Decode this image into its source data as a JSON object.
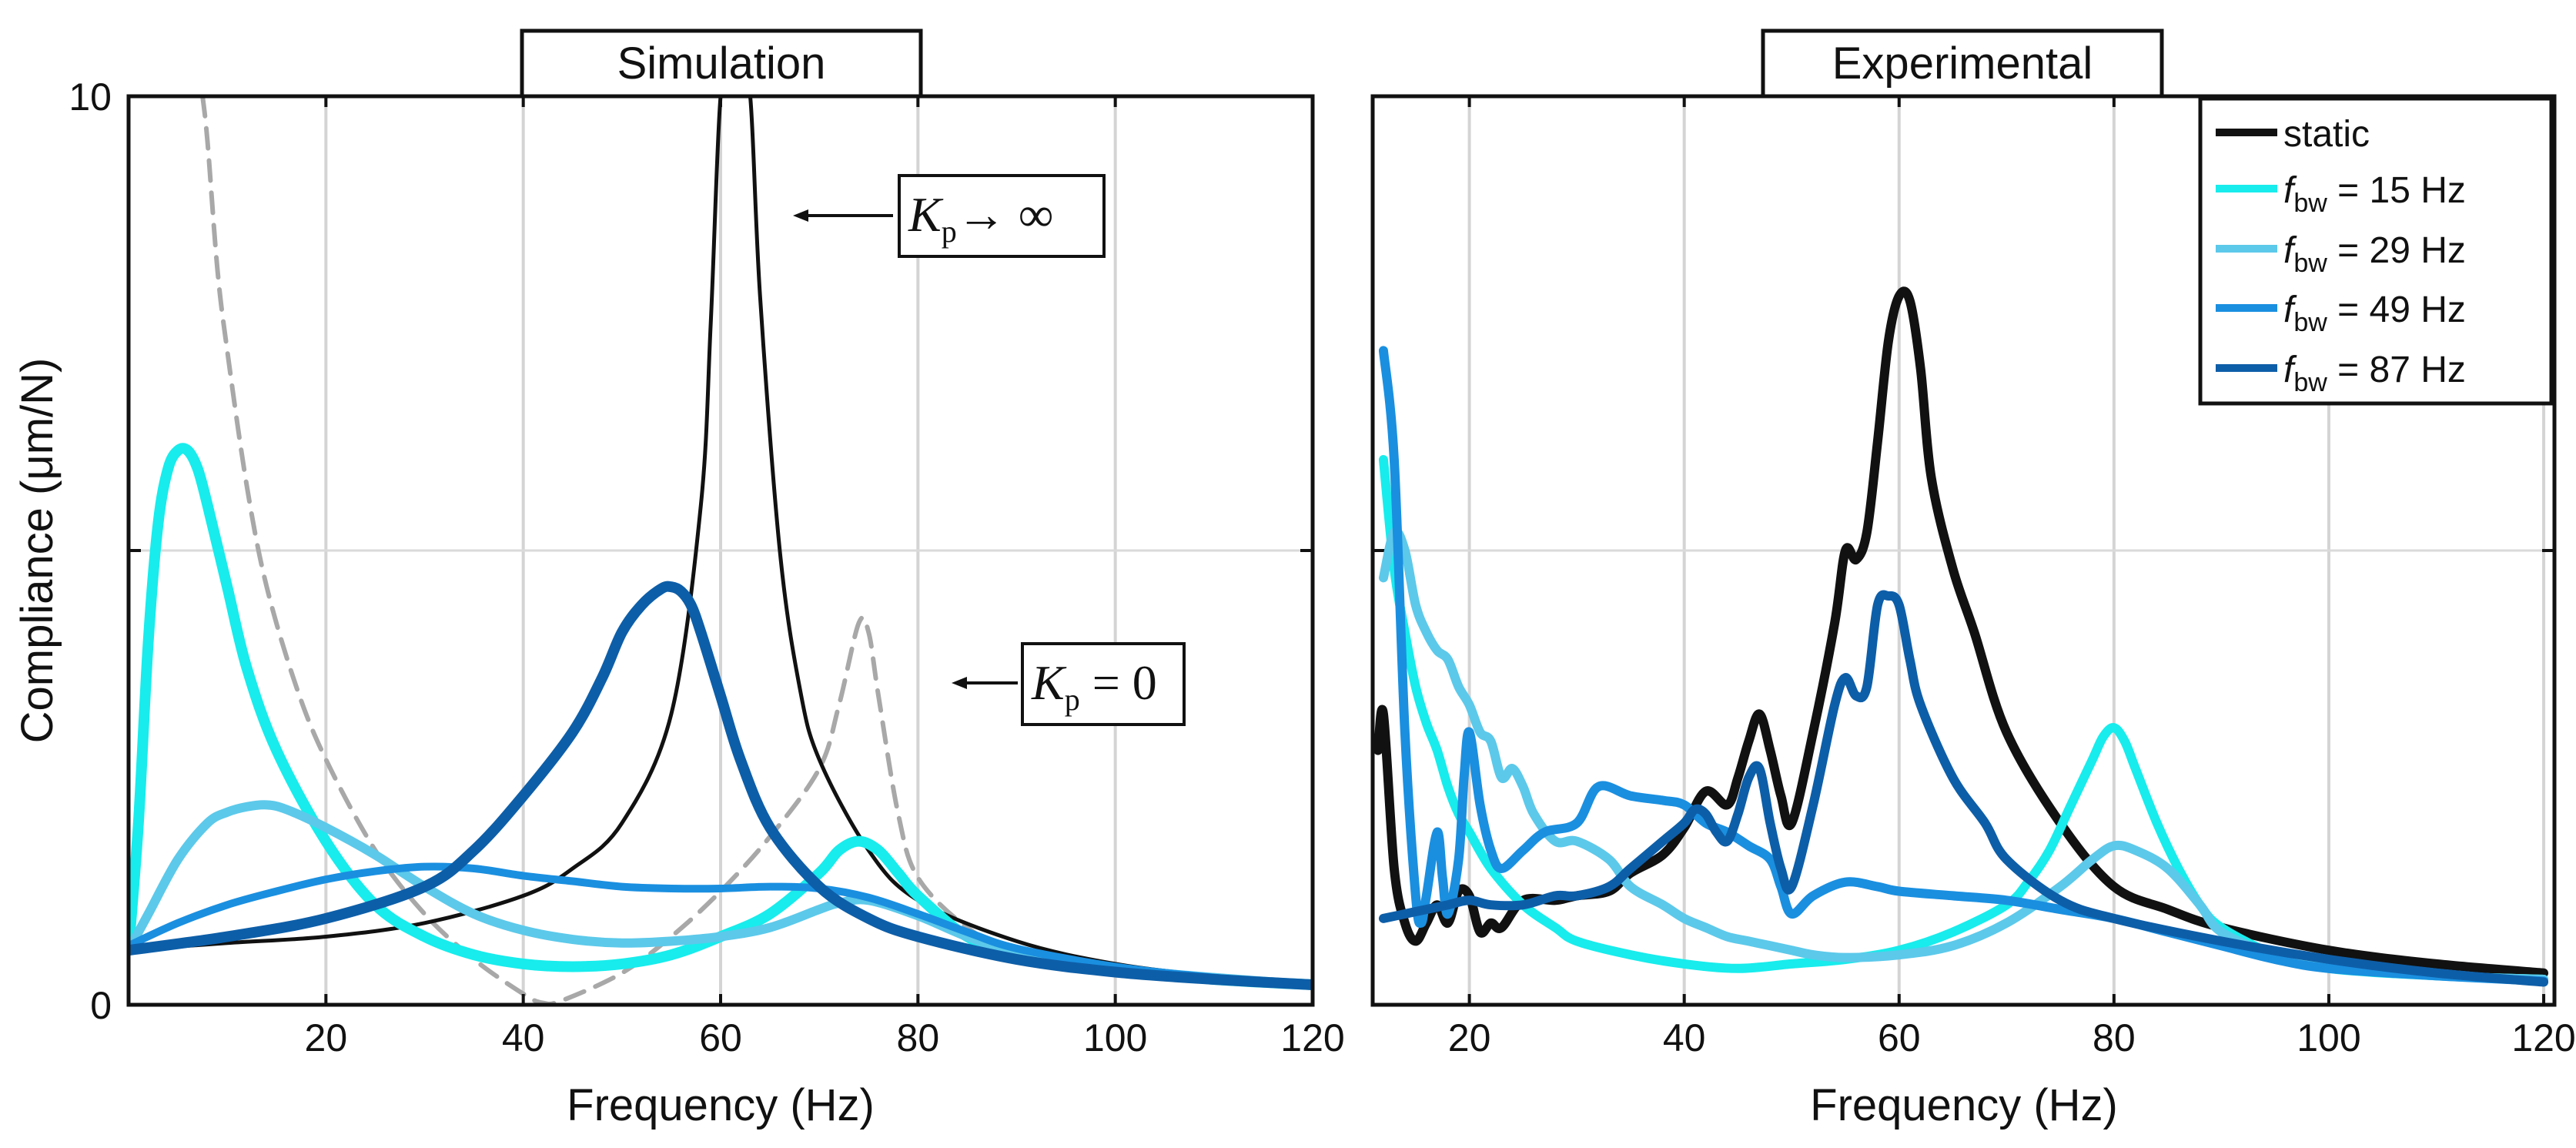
{
  "colors": {
    "static": "#111111",
    "f15": "#18ecec",
    "f29": "#5cc9ea",
    "f49": "#1a8fe0",
    "f87": "#0d5ea8",
    "kp0": "#a8a8a8"
  },
  "chart_data": [
    {
      "type": "line",
      "title": "Simulation",
      "xlabel": "Frequency (Hz)",
      "ylabel": "Compliance (μm/N)",
      "xlim": [
        0,
        120
      ],
      "ylim": [
        0,
        10
      ],
      "xticks": [
        "20",
        "40",
        "60",
        "80",
        "100",
        "120"
      ],
      "yticks": [
        "0",
        "10"
      ],
      "grid": true,
      "annotations": [
        {
          "label_main": "K",
          "label_sub": "p",
          "label_tail": "→ ∞"
        },
        {
          "label_main": "K",
          "label_sub": "p",
          "label_tail": " = 0"
        }
      ],
      "series": [
        {
          "name": "Kp = 0",
          "style": "dashed",
          "color_key": "kp0",
          "width": 6,
          "x": [
            7.5,
            8,
            9,
            10,
            12,
            14,
            17,
            20,
            25,
            30,
            35,
            40,
            42,
            44,
            50,
            55,
            60,
            65,
            70,
            72,
            74,
            75,
            76,
            78,
            80,
            85,
            90,
            100,
            110,
            120
          ],
          "y": [
            10,
            9.5,
            8.1,
            7.2,
            5.7,
            4.6,
            3.5,
            2.7,
            1.7,
            1.0,
            0.5,
            0.12,
            0.02,
            0.05,
            0.35,
            0.75,
            1.25,
            1.85,
            2.6,
            3.3,
            4.2,
            4.1,
            3.4,
            2.1,
            1.4,
            0.85,
            0.6,
            0.35,
            0.25,
            0.2
          ]
        },
        {
          "name": "Kp → ∞",
          "style": "solid",
          "color_key": "static",
          "width": 5,
          "x": [
            0,
            10,
            20,
            30,
            40,
            45,
            50,
            55,
            58,
            59,
            60,
            61,
            62,
            63,
            64,
            66,
            68,
            70,
            75,
            80,
            90,
            100,
            110,
            120
          ],
          "y": [
            0.6,
            0.68,
            0.75,
            0.9,
            1.2,
            1.5,
            2.0,
            3.2,
            5.5,
            7.5,
            10,
            10,
            10,
            10,
            7.8,
            5.0,
            3.5,
            2.7,
            1.7,
            1.15,
            0.7,
            0.45,
            0.32,
            0.25
          ]
        },
        {
          "name": "f_bw = 15 Hz",
          "style": "solid",
          "color_key": "f15",
          "width": 14,
          "x": [
            0,
            1,
            2,
            3,
            4,
            5,
            6,
            7,
            8,
            10,
            12,
            15,
            20,
            25,
            30,
            35,
            40,
            45,
            50,
            55,
            60,
            65,
            70,
            72,
            74,
            76,
            78,
            80,
            85,
            90,
            100,
            110,
            120
          ],
          "y": [
            0.6,
            2.0,
            4.0,
            5.3,
            5.9,
            6.1,
            6.1,
            5.9,
            5.5,
            4.6,
            3.7,
            2.8,
            1.8,
            1.1,
            0.75,
            0.55,
            0.45,
            0.42,
            0.45,
            0.55,
            0.75,
            1.0,
            1.45,
            1.7,
            1.8,
            1.7,
            1.45,
            1.2,
            0.75,
            0.55,
            0.38,
            0.28,
            0.22
          ]
        },
        {
          "name": "f_bw = 29 Hz",
          "style": "solid",
          "color_key": "f29",
          "width": 12,
          "x": [
            0,
            2,
            5,
            8,
            10,
            12,
            14,
            16,
            20,
            25,
            30,
            35,
            40,
            45,
            50,
            55,
            60,
            65,
            70,
            72,
            75,
            80,
            85,
            90,
            100,
            110,
            120
          ],
          "y": [
            0.6,
            1.0,
            1.6,
            2.0,
            2.12,
            2.18,
            2.2,
            2.15,
            1.95,
            1.65,
            1.3,
            1.0,
            0.82,
            0.72,
            0.68,
            0.7,
            0.75,
            0.85,
            1.05,
            1.12,
            1.15,
            0.98,
            0.75,
            0.58,
            0.4,
            0.3,
            0.22
          ]
        },
        {
          "name": "f_bw = 49 Hz",
          "style": "solid",
          "color_key": "f49",
          "width": 10,
          "x": [
            0,
            5,
            10,
            15,
            20,
            25,
            30,
            35,
            40,
            45,
            50,
            55,
            60,
            65,
            70,
            75,
            80,
            85,
            90,
            100,
            110,
            120
          ],
          "y": [
            0.65,
            0.9,
            1.1,
            1.25,
            1.38,
            1.47,
            1.52,
            1.5,
            1.42,
            1.36,
            1.3,
            1.28,
            1.28,
            1.3,
            1.28,
            1.18,
            1.0,
            0.8,
            0.62,
            0.42,
            0.3,
            0.22
          ]
        },
        {
          "name": "f_bw = 87 Hz",
          "style": "solid",
          "color_key": "f87",
          "width": 14,
          "x": [
            0,
            10,
            20,
            30,
            35,
            40,
            45,
            48,
            50,
            52,
            54,
            55,
            56,
            57,
            58,
            60,
            62,
            65,
            70,
            75,
            80,
            90,
            100,
            110,
            120
          ],
          "y": [
            0.6,
            0.75,
            0.95,
            1.3,
            1.7,
            2.3,
            3.0,
            3.6,
            4.1,
            4.4,
            4.58,
            4.6,
            4.55,
            4.4,
            4.1,
            3.4,
            2.7,
            1.95,
            1.3,
            0.95,
            0.75,
            0.5,
            0.36,
            0.28,
            0.22
          ]
        }
      ]
    },
    {
      "type": "line",
      "title": "Experimental",
      "xlabel": "Frequency (Hz)",
      "xlim": [
        11,
        121
      ],
      "ylim": [
        0,
        10
      ],
      "xticks": [
        "20",
        "40",
        "60",
        "80",
        "100",
        "120"
      ],
      "grid": true,
      "legend_position": "top-right",
      "legend": [
        {
          "label": "static",
          "color_key": "static"
        },
        {
          "label_main": "f",
          "label_sub": "bw",
          "label_tail": " = 15 Hz",
          "color_key": "f15"
        },
        {
          "label_main": "f",
          "label_sub": "bw",
          "label_tail": " = 29 Hz",
          "color_key": "f29"
        },
        {
          "label_main": "f",
          "label_sub": "bw",
          "label_tail": " = 49 Hz",
          "color_key": "f49"
        },
        {
          "label_main": "f",
          "label_sub": "bw",
          "label_tail": " = 87 Hz",
          "color_key": "f87"
        }
      ],
      "series": [
        {
          "name": "static",
          "color_key": "static",
          "width": 12,
          "x": [
            11.5,
            12,
            13,
            14,
            15,
            16,
            17,
            18,
            19,
            20,
            21,
            22,
            23,
            25,
            28,
            30,
            33,
            35,
            38,
            40,
            42,
            44,
            45,
            46,
            47,
            48,
            49,
            50,
            52,
            54,
            55,
            56,
            57,
            58,
            59,
            60,
            61,
            62,
            63,
            65,
            67,
            70,
            75,
            80,
            85,
            90,
            100,
            110,
            120
          ],
          "y": [
            2.8,
            3.2,
            1.5,
            0.9,
            0.7,
            0.9,
            1.1,
            0.9,
            1.25,
            1.2,
            0.8,
            0.9,
            0.85,
            1.15,
            1.15,
            1.2,
            1.25,
            1.45,
            1.65,
            1.95,
            2.35,
            2.2,
            2.5,
            2.9,
            3.2,
            2.8,
            2.3,
            2.0,
            3.0,
            4.2,
            5.0,
            4.9,
            5.2,
            6.2,
            7.3,
            7.8,
            7.75,
            7.0,
            5.8,
            4.8,
            4.1,
            3.0,
            2.0,
            1.3,
            1.05,
            0.85,
            0.6,
            0.45,
            0.35
          ]
        },
        {
          "name": "f_bw = 15 Hz",
          "color_key": "f15",
          "width": 12,
          "x": [
            12,
            13,
            14,
            15,
            16,
            17,
            18,
            19,
            20,
            22,
            25,
            28,
            30,
            35,
            40,
            45,
            50,
            55,
            60,
            65,
            70,
            72,
            74,
            76,
            78,
            79,
            80,
            81,
            82,
            84,
            86,
            88,
            90,
            95,
            100,
            110,
            120
          ],
          "y": [
            6,
            4.8,
            4.1,
            3.5,
            3.1,
            2.8,
            2.4,
            2.1,
            1.9,
            1.5,
            1.1,
            0.85,
            0.7,
            0.55,
            0.45,
            0.4,
            0.45,
            0.5,
            0.6,
            0.8,
            1.1,
            1.35,
            1.7,
            2.2,
            2.7,
            2.95,
            3.05,
            2.9,
            2.6,
            2.0,
            1.5,
            1.1,
            0.85,
            0.55,
            0.4,
            0.32,
            0.28
          ]
        },
        {
          "name": "f_bw = 29 Hz",
          "color_key": "f29",
          "width": 12,
          "x": [
            12,
            13,
            14,
            15,
            16,
            17,
            18,
            19,
            20,
            21,
            22,
            23,
            24,
            25,
            26,
            28,
            30,
            33,
            35,
            38,
            40,
            42,
            44,
            46,
            48,
            50,
            52,
            55,
            60,
            65,
            70,
            75,
            78,
            80,
            82,
            85,
            88,
            90,
            95,
            100,
            110,
            120
          ],
          "y": [
            4.7,
            5.2,
            5.0,
            4.4,
            4.1,
            3.9,
            3.8,
            3.5,
            3.3,
            3.0,
            2.9,
            2.5,
            2.6,
            2.4,
            2.1,
            1.8,
            1.8,
            1.6,
            1.3,
            1.1,
            0.95,
            0.85,
            0.75,
            0.7,
            0.65,
            0.6,
            0.55,
            0.52,
            0.55,
            0.65,
            0.9,
            1.3,
            1.6,
            1.75,
            1.7,
            1.5,
            1.1,
            0.8,
            0.55,
            0.42,
            0.32,
            0.28
          ]
        },
        {
          "name": "f_bw = 49 Hz",
          "color_key": "f49",
          "width": 12,
          "x": [
            12,
            13,
            14,
            15,
            15.5,
            16,
            17,
            17.5,
            18,
            19,
            19.5,
            20,
            21,
            22,
            23,
            25,
            27,
            30,
            32,
            35,
            38,
            40,
            42,
            44,
            46,
            48,
            49,
            50,
            52,
            55,
            58,
            60,
            65,
            70,
            75,
            80,
            85,
            90,
            95,
            100,
            110,
            120
          ],
          "y": [
            7.2,
            6.0,
            3.0,
            1.2,
            0.9,
            1.2,
            1.9,
            1.4,
            1.0,
            1.6,
            2.5,
            3.0,
            2.2,
            1.7,
            1.5,
            1.7,
            1.9,
            2.0,
            2.4,
            2.3,
            2.25,
            2.2,
            2.0,
            1.9,
            1.75,
            1.6,
            1.3,
            1.0,
            1.2,
            1.35,
            1.3,
            1.25,
            1.2,
            1.15,
            1.05,
            0.95,
            0.8,
            0.65,
            0.5,
            0.4,
            0.32,
            0.26
          ]
        },
        {
          "name": "f_bw = 87 Hz",
          "color_key": "f87",
          "width": 12,
          "x": [
            12,
            14,
            16,
            18,
            20,
            22,
            25,
            28,
            30,
            33,
            35,
            38,
            40,
            41,
            42,
            43,
            44,
            45,
            46,
            47,
            48,
            49,
            50,
            52,
            54,
            55,
            56,
            57,
            58,
            59,
            60,
            61,
            62,
            65,
            68,
            70,
            75,
            80,
            90,
            100,
            110,
            120
          ],
          "y": [
            0.95,
            1.0,
            1.05,
            1.1,
            1.15,
            1.1,
            1.1,
            1.2,
            1.2,
            1.3,
            1.5,
            1.8,
            2.0,
            2.15,
            2.1,
            1.9,
            1.8,
            2.1,
            2.5,
            2.6,
            2.0,
            1.5,
            1.3,
            2.2,
            3.3,
            3.6,
            3.4,
            3.5,
            4.4,
            4.5,
            4.4,
            3.8,
            3.3,
            2.5,
            2.0,
            1.6,
            1.15,
            0.95,
            0.7,
            0.5,
            0.35,
            0.25
          ]
        }
      ]
    }
  ]
}
